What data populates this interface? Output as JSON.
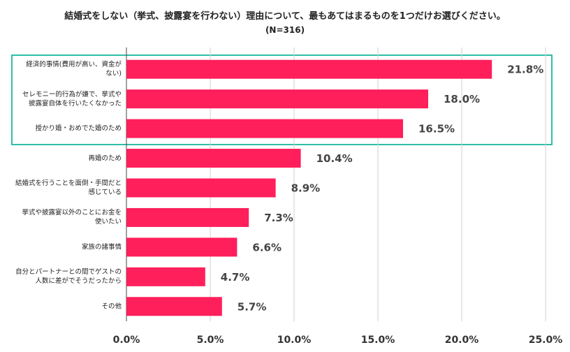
{
  "chart_data": {
    "type": "barh",
    "title": "結婚式をしない（挙式、披露宴を行わない）理由について、最もあてはまるものを1つだけお選びください。",
    "subtitle": "(N=316)",
    "categories": [
      "経済的事情(費用が高い、資金が\nない)",
      "セレモニー的行為が嫌で、挙式や\n披露宴自体を行いたくなかった",
      "授かり婚・おめでた婚のため",
      "再婚のため",
      "結婚式を行うことを面倒・手間だと\n感じている",
      "挙式や披露宴以外のことにお金を\n使いたい",
      "家族の諸事情",
      "自分とパートナーとの間でゲストの\n人数に差がでそうだったから",
      "その他"
    ],
    "values": [
      21.8,
      18.0,
      16.5,
      10.4,
      8.9,
      7.3,
      6.6,
      4.7,
      5.7
    ],
    "value_labels": [
      "21.8%",
      "18.0%",
      "16.5%",
      "10.4%",
      "8.9%",
      "7.3%",
      "6.6%",
      "4.7%",
      "5.7%"
    ],
    "color": "#ff1f5b",
    "xlim": [
      0,
      25
    ],
    "xticks": [
      {
        "value": 0,
        "label": "0.0%"
      },
      {
        "value": 5,
        "label": "5.0%"
      },
      {
        "value": 10,
        "label": "10.0%"
      },
      {
        "value": 15,
        "label": "15.0%"
      },
      {
        "value": 20,
        "label": "20.0%"
      },
      {
        "value": 25,
        "label": "25.0%"
      }
    ],
    "grid": true
  }
}
